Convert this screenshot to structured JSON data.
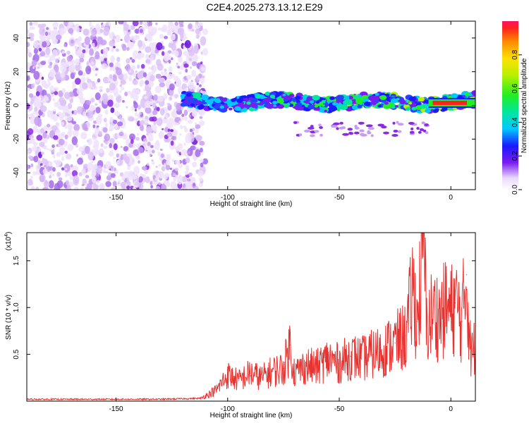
{
  "title": "C2E4.2025.273.13.12.E29",
  "colors": {
    "snr_line": "#e8322f",
    "axis": "#000000",
    "noise": "#8a2be2"
  },
  "chart_data": [
    {
      "type": "heatmap",
      "xlabel": "Height of straight line (km)",
      "ylabel": "Frequency (Hz)",
      "xlim": [
        -190,
        11
      ],
      "ylim": [
        -50,
        50
      ],
      "xticks": [
        -150,
        -100,
        -50,
        0
      ],
      "yticks": [
        -40,
        -20,
        0,
        20,
        40
      ],
      "xtick_labels": [
        "-150",
        "-100",
        "-50",
        "0"
      ],
      "ytick_labels": [
        "-40",
        "-20",
        "0",
        "20",
        "40"
      ],
      "colorbar": {
        "label": "Normalized spectral amplitude",
        "range": [
          0,
          1
        ],
        "ticks": [
          0.0,
          0.2,
          0.4,
          0.6,
          0.8
        ],
        "tick_labels": [
          "0.0",
          "0.2",
          "0.4",
          "0.6",
          "0.8"
        ]
      },
      "features": [
        {
          "name": "noise_region",
          "x_range": [
            -190,
            -110
          ],
          "freq_range": [
            -50,
            50
          ],
          "amplitude": 0.05
        },
        {
          "name": "signal_band",
          "x_range": [
            -120,
            11
          ],
          "center_freq_hz": 2,
          "width_hz": 8,
          "amplitude_range": [
            0.15,
            0.95
          ]
        },
        {
          "name": "strong_band",
          "x_range": [
            -10,
            11
          ],
          "center_freq_hz": 1.5,
          "amplitude": 0.95
        }
      ]
    },
    {
      "type": "line",
      "xlabel": "Height of straight line (km)",
      "ylabel": "SNR (10 * v/v)",
      "multiplier_label": "(x10",
      "multiplier_exp": "4",
      "multiplier_close": ")",
      "xlim": [
        -190,
        11
      ],
      "ylim": [
        0,
        1.8
      ],
      "xticks": [
        -150,
        -100,
        -50,
        0
      ],
      "yticks": [
        0.5,
        1.0,
        1.5
      ],
      "xtick_labels": [
        "-150",
        "-100",
        "-50",
        "0"
      ],
      "ytick_labels": [
        "0.5",
        "1.0",
        "1.5"
      ],
      "series": [
        {
          "name": "SNR",
          "x": [
            -190,
            -170,
            -150,
            -130,
            -112,
            -105,
            -100,
            -95,
            -90,
            -85,
            -80,
            -75,
            -72,
            -70,
            -65,
            -60,
            -55,
            -50,
            -45,
            -40,
            -35,
            -30,
            -25,
            -20,
            -17,
            -15,
            -12,
            -11,
            -8,
            -5,
            -2,
            0,
            2,
            5,
            7,
            9,
            11
          ],
          "y": [
            0.02,
            0.02,
            0.02,
            0.02,
            0.03,
            0.12,
            0.28,
            0.22,
            0.3,
            0.25,
            0.32,
            0.35,
            0.6,
            0.3,
            0.38,
            0.36,
            0.45,
            0.4,
            0.48,
            0.45,
            0.5,
            0.55,
            0.62,
            0.7,
            1.2,
            0.85,
            1.78,
            0.8,
            0.95,
            0.9,
            1.0,
            0.95,
            1.05,
            0.85,
            1.35,
            0.5,
            0.6
          ]
        }
      ]
    }
  ]
}
